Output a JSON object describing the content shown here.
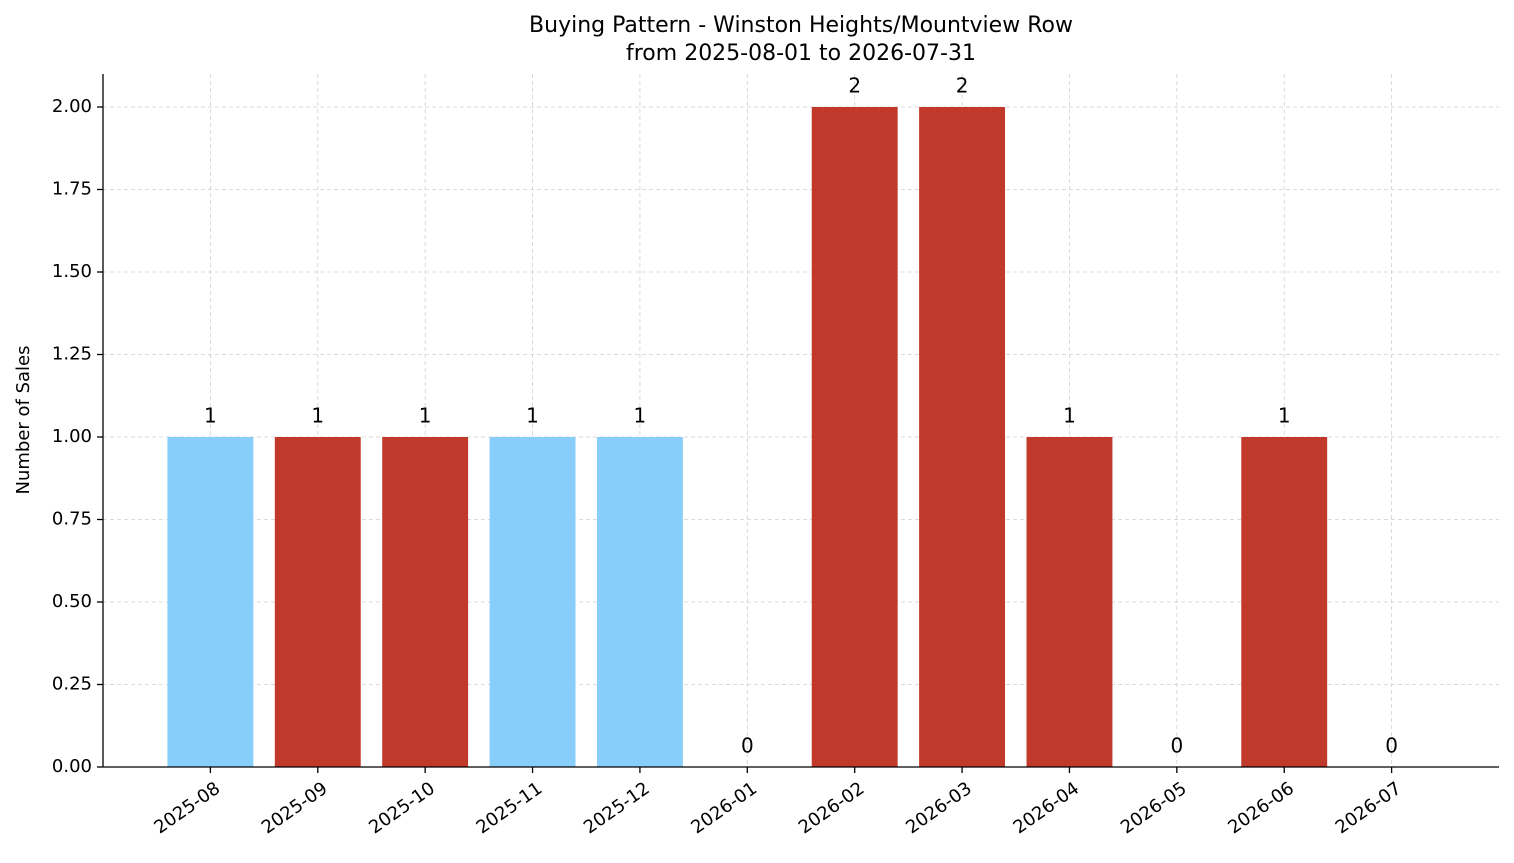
{
  "chart_data": {
    "type": "bar",
    "title": "Buying Pattern - Winston Heights/Mountview Row",
    "subtitle": "from 2025-08-01 to 2026-07-31",
    "y_label": "Number of Sales",
    "categories": [
      "2025-08",
      "2025-09",
      "2025-10",
      "2025-11",
      "2025-12",
      "2026-01",
      "2026-02",
      "2026-03",
      "2026-04",
      "2026-05",
      "2026-06",
      "2026-07"
    ],
    "values": [
      1,
      1,
      1,
      1,
      1,
      0,
      2,
      2,
      1,
      0,
      1,
      0
    ],
    "colors": [
      "#87cefa",
      "#c0392b",
      "#c0392b",
      "#87cefa",
      "#87cefa",
      "#c0392b",
      "#c0392b",
      "#c0392b",
      "#c0392b",
      "#c0392b",
      "#c0392b",
      "#c0392b"
    ],
    "ylim": [
      0,
      2.1
    ],
    "yticks": [
      {
        "value": 0,
        "label": "0.00"
      },
      {
        "value": 0.25,
        "label": "0.25"
      },
      {
        "value": 0.5,
        "label": "0.50"
      },
      {
        "value": 0.75,
        "label": "0.75"
      },
      {
        "value": 1,
        "label": "1.00"
      },
      {
        "value": 1.25,
        "label": "1.25"
      },
      {
        "value": 1.5,
        "label": "1.50"
      },
      {
        "value": 1.75,
        "label": "1.75"
      },
      {
        "value": 2,
        "label": "2.00"
      }
    ],
    "grid": true
  }
}
